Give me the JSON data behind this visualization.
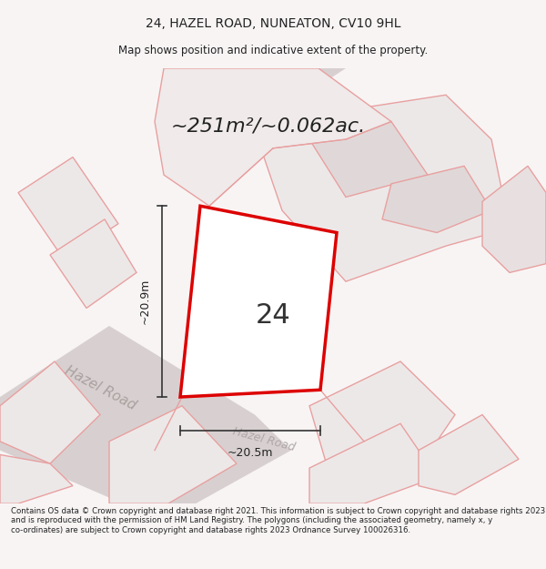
{
  "title_line1": "24, HAZEL ROAD, NUNEATON, CV10 9HL",
  "title_line2": "Map shows position and indicative extent of the property.",
  "area_text": "~251m²/~0.062ac.",
  "number_label": "24",
  "dim_height": "~20.9m",
  "dim_width": "~20.5m",
  "road_label": "Hazel Road",
  "footer_text": "Contains OS data © Crown copyright and database right 2021. This information is subject to Crown copyright and database rights 2023 and is reproduced with the permission of HM Land Registry. The polygons (including the associated geometry, namely x, y co-ordinates) are subject to Crown copyright and database rights 2023 Ordnance Survey 100026316.",
  "bg_color": "#f5f0f0",
  "map_bg": "#ffffff",
  "plot_fill": "#ffffff",
  "plot_outline": "#dd0000",
  "building_fill": "#e8e0e0",
  "road_color": "#d4c8c8",
  "pink_line": "#e8a0a0",
  "dark_line": "#888888"
}
